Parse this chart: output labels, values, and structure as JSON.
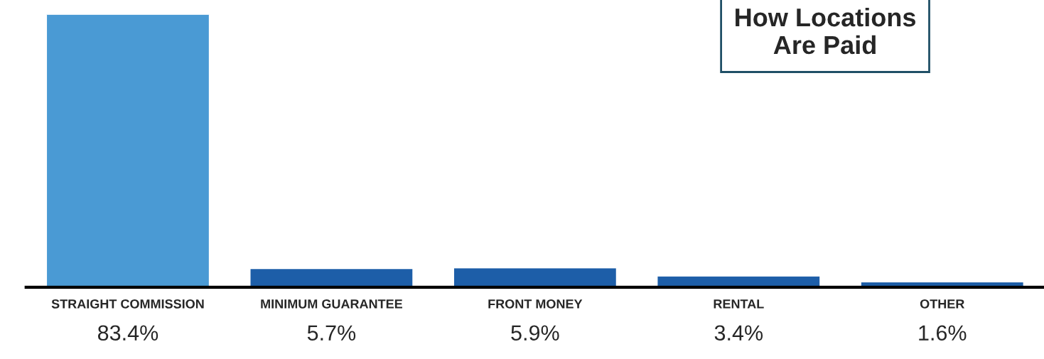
{
  "chart_data": {
    "type": "bar",
    "title": "How Locations\nAre Paid",
    "categories": [
      "STRAIGHT COMMISSION",
      "MINIMUM GUARANTEE",
      "FRONT MONEY",
      "RENTAL",
      "OTHER"
    ],
    "values": [
      83.4,
      5.7,
      5.9,
      3.4,
      1.6
    ],
    "value_labels": [
      "83.4%",
      "5.7%",
      "5.9%",
      "3.4%",
      "1.6%"
    ],
    "colors": [
      "#4a9ad4",
      "#1d5ea8",
      "#1d5ea8",
      "#1d5ea8",
      "#1d5ea8"
    ],
    "grid": false,
    "legend": false
  }
}
